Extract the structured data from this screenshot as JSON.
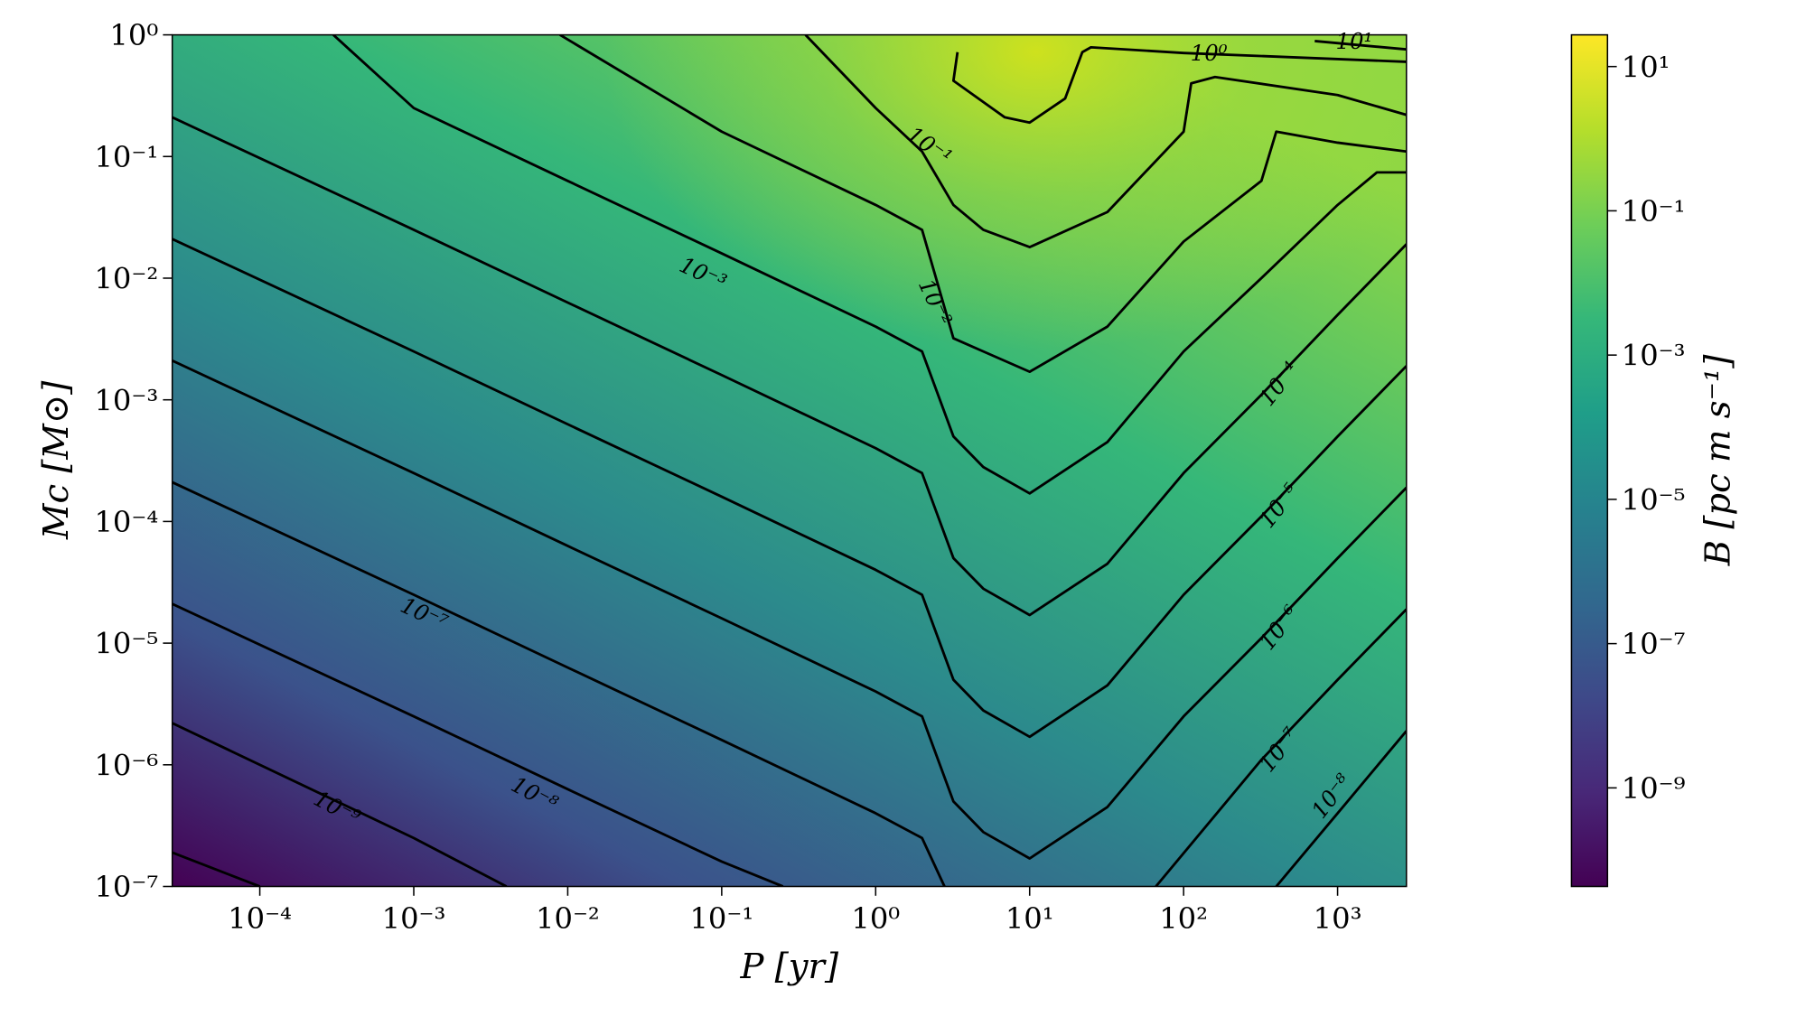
{
  "chart_data": {
    "type": "contour",
    "xlabel": "P [yr]",
    "ylabel": "Mc [M⊙]",
    "xscale": "log",
    "yscale": "log",
    "xlim": [
      2.7e-05,
      2800
    ],
    "ylim": [
      1e-07,
      1
    ],
    "xticks": [
      {
        "value": 0.0001,
        "label": "10⁻⁴"
      },
      {
        "value": 0.001,
        "label": "10⁻³"
      },
      {
        "value": 0.01,
        "label": "10⁻²"
      },
      {
        "value": 0.1,
        "label": "10⁻¹"
      },
      {
        "value": 1,
        "label": "10⁰"
      },
      {
        "value": 10,
        "label": "10¹"
      },
      {
        "value": 100,
        "label": "10²"
      },
      {
        "value": 1000,
        "label": "10³"
      }
    ],
    "yticks": [
      {
        "value": 1e-07,
        "label": "10⁻⁷"
      },
      {
        "value": 1e-06,
        "label": "10⁻⁶"
      },
      {
        "value": 1e-05,
        "label": "10⁻⁵"
      },
      {
        "value": 0.0001,
        "label": "10⁻⁴"
      },
      {
        "value": 0.001,
        "label": "10⁻³"
      },
      {
        "value": 0.01,
        "label": "10⁻²"
      },
      {
        "value": 0.1,
        "label": "10⁻¹"
      },
      {
        "value": 1,
        "label": "10⁰"
      }
    ],
    "line_color": "#000000",
    "colorbar": {
      "label": "B [pc m s⁻¹]",
      "colormap": [
        "#440154",
        "#482878",
        "#3e4989",
        "#31688e",
        "#26828e",
        "#1f9e89",
        "#35b779",
        "#6ece58",
        "#b5de2b",
        "#fde725"
      ],
      "lim": [
        4.3e-11,
        27.5
      ],
      "scale": "log",
      "ticks": [
        {
          "value": 1e-09,
          "label": "10⁻⁹"
        },
        {
          "value": 1e-07,
          "label": "10⁻⁷"
        },
        {
          "value": 1e-05,
          "label": "10⁻⁵"
        },
        {
          "value": 0.001,
          "label": "10⁻³"
        },
        {
          "value": 0.1,
          "label": "10⁻¹"
        },
        {
          "value": 10,
          "label": "10¹"
        }
      ]
    },
    "series": [
      {
        "level": 1e-10,
        "x": [
          2.7e-05,
          0.0001
        ],
        "y": [
          1.9e-07,
          1e-07
        ]
      },
      {
        "name": "10⁻⁹",
        "level": 1e-09,
        "x": [
          2.7e-05,
          0.001,
          0.004
        ],
        "y": [
          2.2e-06,
          2.5e-07,
          1e-07
        ]
      },
      {
        "name": "10⁻⁸",
        "level": 1e-08,
        "x": [
          2.7e-05,
          0.001,
          0.01,
          0.1,
          0.25,
          null,
          400,
          1000,
          2800
        ],
        "y": [
          2.1e-05,
          2.5e-06,
          6.3e-07,
          1.6e-07,
          1e-07,
          null,
          1e-07,
          4e-07,
          1.9e-06
        ]
      },
      {
        "name": "10⁻⁷",
        "level": 1e-07,
        "x": [
          2.7e-05,
          0.001,
          0.01,
          0.1,
          1,
          2,
          2.8,
          null,
          66,
          320,
          1000,
          2800
        ],
        "y": [
          0.00021,
          2.5e-05,
          6.3e-06,
          1.6e-06,
          4e-07,
          2.5e-07,
          1e-07,
          null,
          1e-07,
          1.1e-06,
          5e-06,
          1.9e-05
        ]
      },
      {
        "name": "10⁻⁶",
        "level": 1e-06,
        "x": [
          2.7e-05,
          0.001,
          0.01,
          0.1,
          1,
          2,
          3.2,
          5,
          10,
          32,
          100,
          320,
          1000,
          2800
        ],
        "y": [
          0.0021,
          0.00025,
          6.3e-05,
          1.6e-05,
          4e-06,
          2.5e-06,
          5e-07,
          2.8e-07,
          1.7e-07,
          4.5e-07,
          2.5e-06,
          1.1e-05,
          5e-05,
          0.00019
        ]
      },
      {
        "name": "10⁻⁵",
        "level": 1e-05,
        "x": [
          2.7e-05,
          0.001,
          0.01,
          0.1,
          1,
          2,
          3.2,
          5,
          10,
          32,
          100,
          320,
          1000,
          2800
        ],
        "y": [
          0.021,
          0.0025,
          0.00063,
          0.00016,
          4e-05,
          2.5e-05,
          5e-06,
          2.8e-06,
          1.7e-06,
          4.5e-06,
          2.5e-05,
          0.00011,
          0.0005,
          0.0019
        ]
      },
      {
        "name": "10⁻⁴",
        "level": 0.0001,
        "x": [
          2.7e-05,
          0.001,
          0.01,
          0.1,
          1,
          2,
          3.2,
          5,
          10,
          32,
          100,
          320,
          1000,
          2800
        ],
        "y": [
          0.21,
          0.025,
          0.0063,
          0.0016,
          0.0004,
          0.00025,
          5e-05,
          2.8e-05,
          1.7e-05,
          4.5e-05,
          0.00025,
          0.0011,
          0.005,
          0.019
        ]
      },
      {
        "name": "10⁻³",
        "level": 0.001,
        "x": [
          0.0003,
          0.001,
          0.01,
          0.1,
          1,
          2,
          3.2,
          5,
          10,
          32,
          100,
          320,
          1000,
          1800,
          2800
        ],
        "y": [
          1,
          0.25,
          0.063,
          0.016,
          0.004,
          0.0025,
          0.0005,
          0.00028,
          0.00017,
          0.00045,
          0.0025,
          0.01,
          0.04,
          0.074,
          0.074
        ]
      },
      {
        "name": "10⁻²",
        "level": 0.01,
        "x": [
          0.0089,
          0.1,
          1,
          2,
          3.2,
          5,
          10,
          32,
          100,
          320,
          400,
          1000,
          2800
        ],
        "y": [
          1,
          0.16,
          0.04,
          0.025,
          0.0032,
          0.0025,
          0.0017,
          0.004,
          0.02,
          0.063,
          0.16,
          0.13,
          0.11
        ]
      },
      {
        "name": "10⁻¹",
        "level": 0.1,
        "x": [
          0.35,
          1,
          2,
          3.2,
          5,
          10,
          32,
          100,
          112,
          160,
          1000,
          2800
        ],
        "y": [
          1,
          0.25,
          0.11,
          0.04,
          0.025,
          0.018,
          0.035,
          0.16,
          0.4,
          0.45,
          0.32,
          0.22
        ]
      },
      {
        "name": "10⁰",
        "level": 1,
        "x": [
          3.4,
          3.2,
          6.9,
          10,
          17,
          22,
          25,
          100,
          2800
        ],
        "y": [
          0.72,
          0.42,
          0.21,
          0.19,
          0.3,
          0.72,
          0.79,
          0.71,
          0.6
        ]
      },
      {
        "name": "10¹",
        "level": 10,
        "x": [
          710,
          2800
        ],
        "y": [
          0.89,
          0.76
        ]
      }
    ]
  }
}
